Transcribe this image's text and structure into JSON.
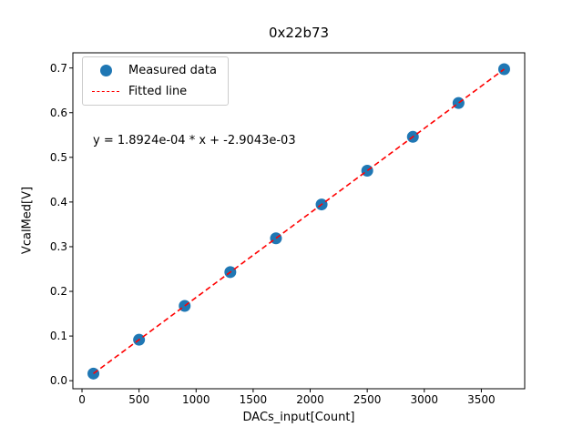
{
  "chart_data": {
    "type": "scatter",
    "title": "0x22b73",
    "xlabel": "DACs_input[Count]",
    "ylabel": "VcalMed[V]",
    "annotation": "y = 1.8924e-04 * x + -2.9043e-03",
    "x": [
      100,
      500,
      900,
      1300,
      1700,
      2100,
      2500,
      2900,
      3300,
      3700
    ],
    "y": [
      0.016,
      0.0917,
      0.1674,
      0.2431,
      0.3188,
      0.3945,
      0.4701,
      0.5459,
      0.6216,
      0.6973
    ],
    "fit": {
      "slope": 0.00018924,
      "intercept": -0.0029043
    },
    "marker_color": "#1f77b4",
    "line_color": "#ff0000",
    "xlim": [
      -80,
      3880
    ],
    "ylim": [
      -0.018,
      0.734
    ],
    "xticks": {
      "values": [
        0,
        500,
        1000,
        1500,
        2000,
        2500,
        3000,
        3500
      ],
      "labels": [
        "0",
        "500",
        "1000",
        "1500",
        "2000",
        "2500",
        "3000",
        "3500"
      ]
    },
    "yticks": {
      "values": [
        0.0,
        0.1,
        0.2,
        0.3,
        0.4,
        0.5,
        0.6,
        0.7
      ],
      "labels": [
        "0.0",
        "0.1",
        "0.2",
        "0.3",
        "0.4",
        "0.5",
        "0.6",
        "0.7"
      ]
    },
    "legend": [
      {
        "label": "Measured data",
        "marker": "circle"
      },
      {
        "label": "Fitted line",
        "marker": "dashed-line"
      }
    ],
    "legend_position": "upper left",
    "grid": false
  }
}
